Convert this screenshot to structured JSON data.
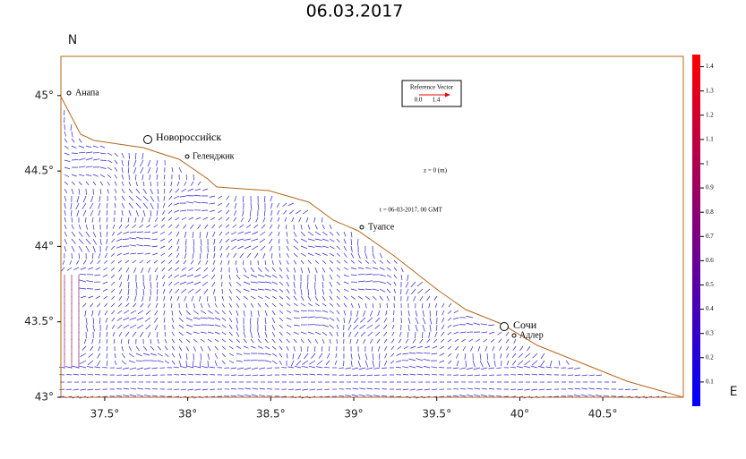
{
  "title": "06.03.2017",
  "y_axis_label": "N",
  "x_axis_label": "E",
  "lat_range": [
    43,
    45.26
  ],
  "lon_range": [
    37.236,
    40.985
  ],
  "lat_ticks": [
    {
      "value": 43,
      "label": "43°"
    },
    {
      "value": 43.5,
      "label": "43.5°"
    },
    {
      "value": 44,
      "label": "44°"
    },
    {
      "value": 44.5,
      "label": "44.5°"
    },
    {
      "value": 45,
      "label": "45°"
    }
  ],
  "lon_ticks": [
    {
      "value": 37.5,
      "label": "37.5°"
    },
    {
      "value": 38,
      "label": "38°"
    },
    {
      "value": 38.5,
      "label": "38.5°"
    },
    {
      "value": 39,
      "label": "39°"
    },
    {
      "value": 39.5,
      "label": "39.5°"
    },
    {
      "value": 40,
      "label": "40°"
    },
    {
      "value": 40.5,
      "label": "40.5°"
    }
  ],
  "colorbar": {
    "range": [
      0,
      1.45
    ],
    "ticks": [
      0.1,
      0.2,
      0.3,
      0.4,
      0.5,
      0.6,
      0.7,
      0.8,
      0.9,
      1,
      1.1,
      1.2,
      1.3,
      1.4
    ]
  },
  "cities": [
    "Анапа",
    "Новороссийск",
    "Геленджик",
    "Туапсе",
    "Сочи",
    "Адлер"
  ],
  "reference_vector": {
    "title": "Reference Vector",
    "min": "0.0",
    "max": "1.4"
  },
  "annotations": [
    "z = 0 (m)",
    "t = 06-03-2017, 00 GMT"
  ]
}
